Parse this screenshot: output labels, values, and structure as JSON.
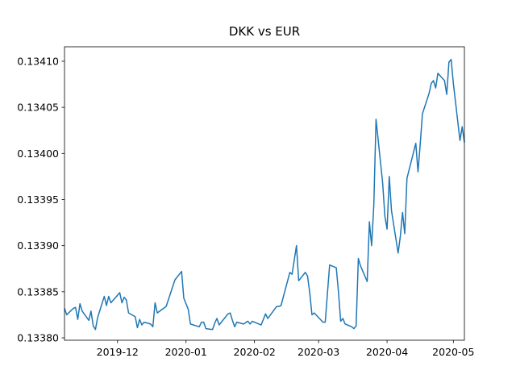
{
  "chart_data": {
    "type": "line",
    "title": "DKK vs EUR",
    "color": "#1f77b4",
    "x": [
      "2019-11-07",
      "2019-11-08",
      "2019-11-11",
      "2019-11-12",
      "2019-11-13",
      "2019-11-14",
      "2019-11-15",
      "2019-11-18",
      "2019-11-19",
      "2019-11-20",
      "2019-11-21",
      "2019-11-22",
      "2019-11-25",
      "2019-11-26",
      "2019-11-27",
      "2019-11-28",
      "2019-12-02",
      "2019-12-03",
      "2019-12-04",
      "2019-12-05",
      "2019-12-06",
      "2019-12-09",
      "2019-12-10",
      "2019-12-11",
      "2019-12-12",
      "2019-12-13",
      "2019-12-16",
      "2019-12-17",
      "2019-12-18",
      "2019-12-19",
      "2019-12-23",
      "2019-12-27",
      "2019-12-30",
      "2019-12-31",
      "2020-01-02",
      "2020-01-03",
      "2020-01-07",
      "2020-01-08",
      "2020-01-09",
      "2020-01-10",
      "2020-01-13",
      "2020-01-14",
      "2020-01-15",
      "2020-01-16",
      "2020-01-20",
      "2020-01-21",
      "2020-01-22",
      "2020-01-23",
      "2020-01-24",
      "2020-01-27",
      "2020-01-29",
      "2020-01-30",
      "2020-01-31",
      "2020-02-04",
      "2020-02-06",
      "2020-02-07",
      "2020-02-11",
      "2020-02-12",
      "2020-02-13",
      "2020-02-17",
      "2020-02-18",
      "2020-02-20",
      "2020-02-21",
      "2020-02-24",
      "2020-02-25",
      "2020-02-26",
      "2020-02-27",
      "2020-02-28",
      "2020-03-03",
      "2020-03-04",
      "2020-03-06",
      "2020-03-09",
      "2020-03-10",
      "2020-03-11",
      "2020-03-12",
      "2020-03-13",
      "2020-03-16",
      "2020-03-17",
      "2020-03-18",
      "2020-03-19",
      "2020-03-20",
      "2020-03-23",
      "2020-03-24",
      "2020-03-25",
      "2020-03-26",
      "2020-03-27",
      "2020-03-30",
      "2020-03-31",
      "2020-04-01",
      "2020-04-02",
      "2020-04-03",
      "2020-04-06",
      "2020-04-07",
      "2020-04-08",
      "2020-04-09",
      "2020-04-10",
      "2020-04-14",
      "2020-04-15",
      "2020-04-16",
      "2020-04-17",
      "2020-04-20",
      "2020-04-21",
      "2020-04-22",
      "2020-04-23",
      "2020-04-24",
      "2020-04-27",
      "2020-04-28",
      "2020-04-29",
      "2020-04-30",
      "2020-05-01",
      "2020-05-04",
      "2020-05-05",
      "2020-05-06"
    ],
    "values": [
      0.133832,
      0.133825,
      0.133832,
      0.133833,
      0.13382,
      0.133837,
      0.133829,
      0.133819,
      0.133829,
      0.133813,
      0.133809,
      0.133822,
      0.133845,
      0.133835,
      0.133845,
      0.133838,
      0.133849,
      0.133838,
      0.133844,
      0.133841,
      0.133827,
      0.133823,
      0.133811,
      0.13382,
      0.133814,
      0.133817,
      0.133815,
      0.133812,
      0.133838,
      0.133827,
      0.133834,
      0.133863,
      0.133872,
      0.133843,
      0.133831,
      0.133815,
      0.133812,
      0.133817,
      0.133817,
      0.13381,
      0.133809,
      0.133816,
      0.133821,
      0.133814,
      0.133826,
      0.133827,
      0.133819,
      0.133812,
      0.133817,
      0.133815,
      0.133818,
      0.133815,
      0.133818,
      0.133814,
      0.133826,
      0.133821,
      0.133834,
      0.133834,
      0.133835,
      0.133871,
      0.133869,
      0.1339,
      0.133862,
      0.133871,
      0.133867,
      0.133849,
      0.133825,
      0.133827,
      0.133817,
      0.133817,
      0.133879,
      0.133876,
      0.13385,
      0.133818,
      0.133821,
      0.133815,
      0.133812,
      0.13381,
      0.133813,
      0.133886,
      0.133878,
      0.133861,
      0.133926,
      0.1339,
      0.133944,
      0.134037,
      0.133968,
      0.133932,
      0.133918,
      0.133975,
      0.133938,
      0.133892,
      0.13391,
      0.133936,
      0.133913,
      0.133973,
      0.134011,
      0.13398,
      0.13401,
      0.134043,
      0.134065,
      0.134076,
      0.134079,
      0.134071,
      0.134087,
      0.134079,
      0.134064,
      0.134099,
      0.134102,
      0.134076,
      0.134014,
      0.134029,
      0.134012
    ],
    "xlim": [
      "2019-11-07",
      "2020-05-06"
    ],
    "xticks": [
      {
        "value": "2019-12-01",
        "label": "2019-12"
      },
      {
        "value": "2020-01-01",
        "label": "2020-01"
      },
      {
        "value": "2020-02-01",
        "label": "2020-02"
      },
      {
        "value": "2020-03-01",
        "label": "2020-03"
      },
      {
        "value": "2020-04-01",
        "label": "2020-04"
      },
      {
        "value": "2020-05-01",
        "label": "2020-05"
      }
    ],
    "ylim": [
      0.1337974,
      0.1341157
    ],
    "yticks": [
      {
        "value": 0.1338,
        "label": "0.13380"
      },
      0.13385,
      {
        "value": 0.1339,
        "label": "0.13390"
      },
      0.13395,
      {
        "value": 0.134,
        "label": "0.13400"
      },
      0.13405,
      {
        "value": 0.1341,
        "label": "0.13410"
      }
    ],
    "grid": false
  }
}
